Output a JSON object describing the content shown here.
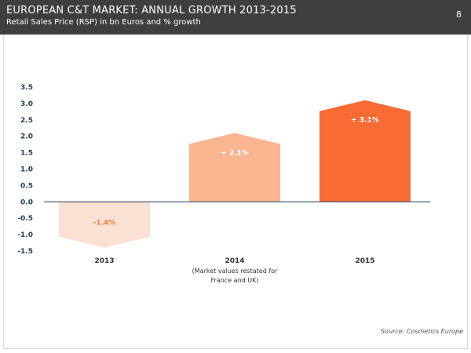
{
  "header": {
    "title": "EUROPEAN C&T MARKET: ANNUAL GROWTH 2013-2015",
    "subtitle": "Retail Sales Price (RSP) in bn Euros and % growth",
    "page_number": "8"
  },
  "footer": {
    "source": "Source: Cosmetics Europe"
  },
  "colors": {
    "header_bg": "#3f3f3f",
    "bar_2013": "#fbe1d4",
    "bar_2014": "#fcb591",
    "bar_2015": "#f86b35",
    "label_2013": "#f37a3e",
    "label_light": "#ffffff",
    "axis_text": "#1f3a5c",
    "axis_line": "#1f3a5c"
  },
  "chart_data": {
    "type": "bar",
    "title": "",
    "xlabel": "",
    "ylabel": "",
    "ylim": [
      -1.5,
      3.5
    ],
    "ytick_labels": [
      "3.5",
      "3.0",
      "2.5",
      "2.0",
      "1.5",
      "1.0",
      "0.5",
      "0.0",
      "-0.5",
      "-1.0",
      "-1.5"
    ],
    "yticks": [
      3.5,
      3.0,
      2.5,
      2.0,
      1.5,
      1.0,
      0.5,
      0.0,
      -0.5,
      -1.0,
      -1.5
    ],
    "categories": [
      "2013",
      "2014",
      "2015"
    ],
    "category_notes": [
      "",
      "(Market values restated for",
      ""
    ],
    "category_notes_2": [
      "",
      "France and UK)",
      ""
    ],
    "values": [
      -1.4,
      2.1,
      3.1
    ],
    "data_labels": [
      "-1.4%",
      "+ 2.1%",
      "+ 3.1%"
    ],
    "grid": false
  }
}
